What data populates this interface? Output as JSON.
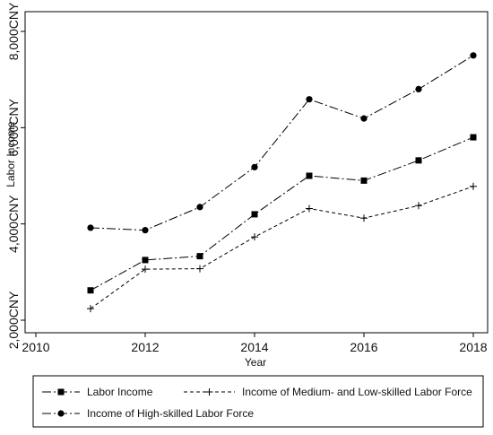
{
  "chart_data": {
    "type": "line",
    "title": "",
    "xlabel": "Year",
    "ylabel": "Labor Income",
    "xlim": [
      2010,
      2018
    ],
    "ylim": [
      2000,
      8000
    ],
    "xticks": [
      2010,
      2012,
      2014,
      2016,
      2018
    ],
    "yticks": [
      2000,
      4000,
      6000,
      8000
    ],
    "xtick_labels": [
      "2010",
      "2012",
      "2014",
      "2016",
      "2018"
    ],
    "ytick_labels": [
      "2,000CNY",
      "4,000CNY",
      "6,000CNY",
      "8,000CNY"
    ],
    "grid": false,
    "legend_position": "bottom",
    "x": [
      2011,
      2012,
      2013,
      2014,
      2015,
      2016,
      2017,
      2018
    ],
    "series": [
      {
        "name": "Labor Income",
        "values": [
          2620,
          3250,
          3330,
          4200,
          5000,
          4900,
          5320,
          5800
        ],
        "marker": "square",
        "dash": "dashdot",
        "color": "#000000"
      },
      {
        "name": "Income of Medium- and Low-skilled Labor Force",
        "values": [
          2240,
          3060,
          3070,
          3730,
          4320,
          4120,
          4380,
          4780
        ],
        "marker": "plus",
        "dash": "dashed",
        "color": "#000000"
      },
      {
        "name": "Income of High-skilled Labor Force",
        "values": [
          3920,
          3870,
          4350,
          5180,
          6590,
          6190,
          6800,
          7500
        ],
        "marker": "circle",
        "dash": "dashdot",
        "color": "#000000"
      }
    ]
  }
}
